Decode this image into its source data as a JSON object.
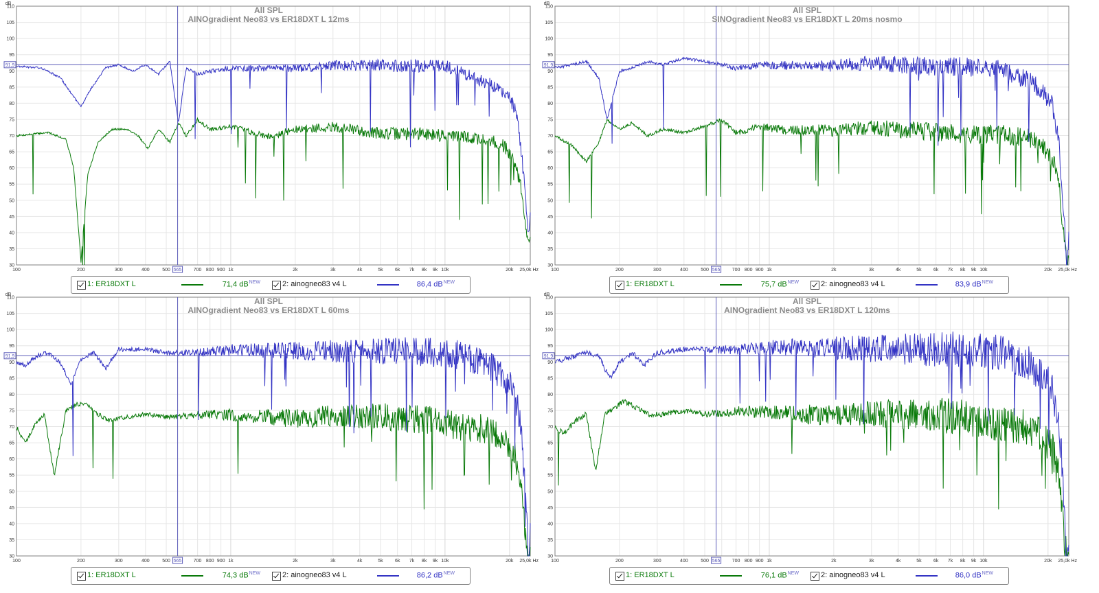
{
  "colors": {
    "green": "#0a7a0a",
    "blue": "#3434c4",
    "grid": "#e6e6e6",
    "gridMajor": "#d8d8d8",
    "axis": "#7f7f7f",
    "cursor": "#5a5ab8"
  },
  "axis": {
    "db_label": "dB",
    "y_ticks": [
      "110",
      "105",
      "100",
      "95",
      "90",
      "85",
      "80",
      "75",
      "70",
      "65",
      "60",
      "55",
      "50",
      "45",
      "40",
      "35",
      "30"
    ],
    "x_ticks": [
      {
        "f": 100,
        "label": "100"
      },
      {
        "f": 200,
        "label": "200"
      },
      {
        "f": 300,
        "label": "300"
      },
      {
        "f": 400,
        "label": "400"
      },
      {
        "f": 500,
        "label": "500"
      },
      {
        "f": 700,
        "label": "700"
      },
      {
        "f": 800,
        "label": "800"
      },
      {
        "f": 900,
        "label": "900"
      },
      {
        "f": 1000,
        "label": "1k"
      },
      {
        "f": 2000,
        "label": "2k"
      },
      {
        "f": 3000,
        "label": "3k"
      },
      {
        "f": 4000,
        "label": "4k"
      },
      {
        "f": 5000,
        "label": "5k"
      },
      {
        "f": 6000,
        "label": "6k"
      },
      {
        "f": 7000,
        "label": "7k"
      },
      {
        "f": 8000,
        "label": "8k"
      },
      {
        "f": 9000,
        "label": "9k"
      },
      {
        "f": 10000,
        "label": "10k"
      },
      {
        "f": 20000,
        "label": "20k"
      },
      {
        "f": 25000,
        "label": "25,0k Hz"
      }
    ],
    "cursor_freq_label": "565",
    "cursor_db_label": "91,9"
  },
  "chart_data": [
    {
      "type": "line",
      "title": "All SPL",
      "subtitle": "AINOgradient Neo83 vs ER18DXT L 12ms",
      "xlim": [
        100,
        25000
      ],
      "ylim": [
        30,
        110
      ],
      "x_scale": "log",
      "cursor": {
        "freq": 565,
        "db": 91.9
      },
      "series": [
        {
          "name": "1: ER18DXT L",
          "color": "green",
          "legend_value": "71,4 dB",
          "x": [
            100,
            140,
            170,
            185,
            200,
            215,
            240,
            280,
            330,
            370,
            410,
            460,
            520,
            570,
            620,
            700,
            800,
            1000,
            1500,
            2000,
            3000,
            5000,
            8000,
            12000,
            16000,
            19000,
            21000,
            22500,
            23500,
            24500,
            25000
          ],
          "y": [
            70,
            71,
            69,
            60,
            31,
            58,
            68,
            72,
            72,
            70,
            66,
            72,
            68,
            74,
            70,
            75,
            72,
            73,
            70,
            72,
            73,
            71,
            71,
            70,
            69,
            67,
            63,
            55,
            45,
            38,
            40
          ]
        },
        {
          "name": "2: ainogneo83 v4 L",
          "color": "blue",
          "legend_value": "86,4 dB",
          "x": [
            100,
            130,
            160,
            185,
            200,
            220,
            260,
            300,
            350,
            400,
            460,
            520,
            570,
            620,
            700,
            800,
            1000,
            1500,
            2000,
            3000,
            5000,
            8000,
            10000,
            14000,
            18000,
            20000,
            21500,
            22500,
            23500,
            24500,
            25000
          ],
          "y": [
            91.5,
            91,
            88,
            82,
            79,
            84,
            91,
            92,
            90,
            92,
            89,
            93,
            74,
            91,
            89,
            90,
            91,
            91,
            91,
            92,
            92,
            92,
            92,
            88,
            85,
            82,
            78,
            68,
            55,
            40,
            45
          ]
        }
      ]
    },
    {
      "type": "line",
      "title": "All SPL",
      "subtitle": "SINOgradient Neo83 vs ER18DXT L 20ms nosmo",
      "xlim": [
        100,
        25000
      ],
      "ylim": [
        30,
        110
      ],
      "x_scale": "log",
      "cursor": {
        "freq": 565,
        "db": 91.9
      },
      "series": [
        {
          "name": "1: ER18DXT L",
          "color": "green",
          "legend_value": "75,7 dB",
          "x": [
            100,
            120,
            140,
            160,
            175,
            200,
            230,
            270,
            320,
            400,
            500,
            600,
            700,
            900,
            1200,
            2000,
            3000,
            5000,
            8000,
            12000,
            16000,
            19000,
            21000,
            22500,
            23500,
            24500,
            25000
          ],
          "y": [
            70,
            67,
            62,
            68,
            75,
            72,
            74,
            70,
            72,
            71,
            73,
            75,
            71,
            73,
            72,
            72,
            73,
            72,
            71,
            71,
            70,
            67,
            64,
            56,
            42,
            30,
            35
          ]
        },
        {
          "name": "2: ainogneo83 v4 L",
          "color": "blue",
          "legend_value": "83,9 dB",
          "x": [
            100,
            120,
            140,
            160,
            175,
            200,
            230,
            270,
            320,
            400,
            500,
            600,
            700,
            900,
            1200,
            2000,
            3000,
            5000,
            8000,
            12000,
            16000,
            19000,
            21000,
            22500,
            23500,
            24500,
            25000
          ],
          "y": [
            91,
            92,
            93,
            88,
            75,
            90,
            91,
            93,
            92,
            94,
            93,
            92,
            91,
            92,
            92,
            92,
            93,
            92,
            92,
            91,
            88,
            84,
            80,
            68,
            50,
            30,
            38
          ]
        }
      ]
    },
    {
      "type": "line",
      "title": "All SPL",
      "subtitle": "AINOgradient Neo83 vs ER18DXT L 60ms",
      "xlim": [
        100,
        25000
      ],
      "ylim": [
        30,
        110
      ],
      "x_scale": "log",
      "cursor": {
        "freq": 565,
        "db": 91.9
      },
      "series": [
        {
          "name": "1: ER18DXT L",
          "color": "green",
          "legend_value": "74,3 dB",
          "x": [
            100,
            110,
            120,
            135,
            150,
            170,
            190,
            210,
            240,
            270,
            320,
            400,
            500,
            700,
            1000,
            2000,
            3000,
            5000,
            8000,
            12000,
            16000,
            19000,
            21000,
            22500,
            23500,
            24500,
            25000
          ],
          "y": [
            70,
            65,
            70,
            74,
            55,
            75,
            77,
            77,
            74,
            72,
            73,
            74,
            73,
            74,
            74,
            73,
            74,
            74,
            73,
            71,
            70,
            67,
            63,
            55,
            42,
            30,
            35
          ]
        },
        {
          "name": "2: ainogneo83 v4 L",
          "color": "blue",
          "legend_value": "86,2 dB",
          "x": [
            100,
            110,
            125,
            140,
            160,
            180,
            200,
            230,
            260,
            300,
            400,
            500,
            700,
            1000,
            2000,
            3000,
            5000,
            8000,
            12000,
            16000,
            19000,
            21000,
            22500,
            23500,
            24500,
            25000
          ],
          "y": [
            90,
            89,
            92,
            93,
            90,
            83,
            91,
            93,
            88,
            94,
            94,
            93,
            93,
            94,
            94,
            94,
            94,
            94,
            93,
            90,
            86,
            82,
            72,
            55,
            30,
            40
          ]
        }
      ]
    },
    {
      "type": "line",
      "title": "All SPL",
      "subtitle": "AINOgradient Neo83 vs ER18DXT L 120ms",
      "xlim": [
        100,
        25000
      ],
      "ylim": [
        30,
        110
      ],
      "x_scale": "log",
      "cursor": {
        "freq": 565,
        "db": 91.9
      },
      "series": [
        {
          "name": "1: ER18DXT L",
          "color": "green",
          "legend_value": "76,1 dB",
          "x": [
            100,
            110,
            125,
            140,
            155,
            170,
            190,
            210,
            240,
            270,
            320,
            400,
            500,
            700,
            1000,
            2000,
            3000,
            5000,
            8000,
            12000,
            16000,
            19000,
            21000,
            22500,
            23500,
            24500,
            25000
          ],
          "y": [
            70,
            68,
            72,
            74,
            56,
            74,
            76,
            78,
            76,
            74,
            74,
            75,
            74,
            75,
            75,
            74,
            75,
            75,
            74,
            72,
            71,
            68,
            64,
            55,
            40,
            30,
            35
          ]
        },
        {
          "name": "2: ainogneo83 v4 L",
          "color": "blue",
          "legend_value": "86,0 dB",
          "x": [
            100,
            110,
            125,
            140,
            160,
            180,
            200,
            230,
            260,
            300,
            400,
            500,
            700,
            1000,
            2000,
            3000,
            5000,
            8000,
            12000,
            16000,
            19000,
            21000,
            22500,
            23500,
            24500,
            25000
          ],
          "y": [
            90,
            91,
            92,
            93,
            92,
            85,
            90,
            93,
            89,
            93,
            94,
            94,
            94,
            95,
            95,
            95,
            95,
            95,
            94,
            91,
            87,
            83,
            72,
            55,
            30,
            40
          ]
        }
      ]
    }
  ]
}
